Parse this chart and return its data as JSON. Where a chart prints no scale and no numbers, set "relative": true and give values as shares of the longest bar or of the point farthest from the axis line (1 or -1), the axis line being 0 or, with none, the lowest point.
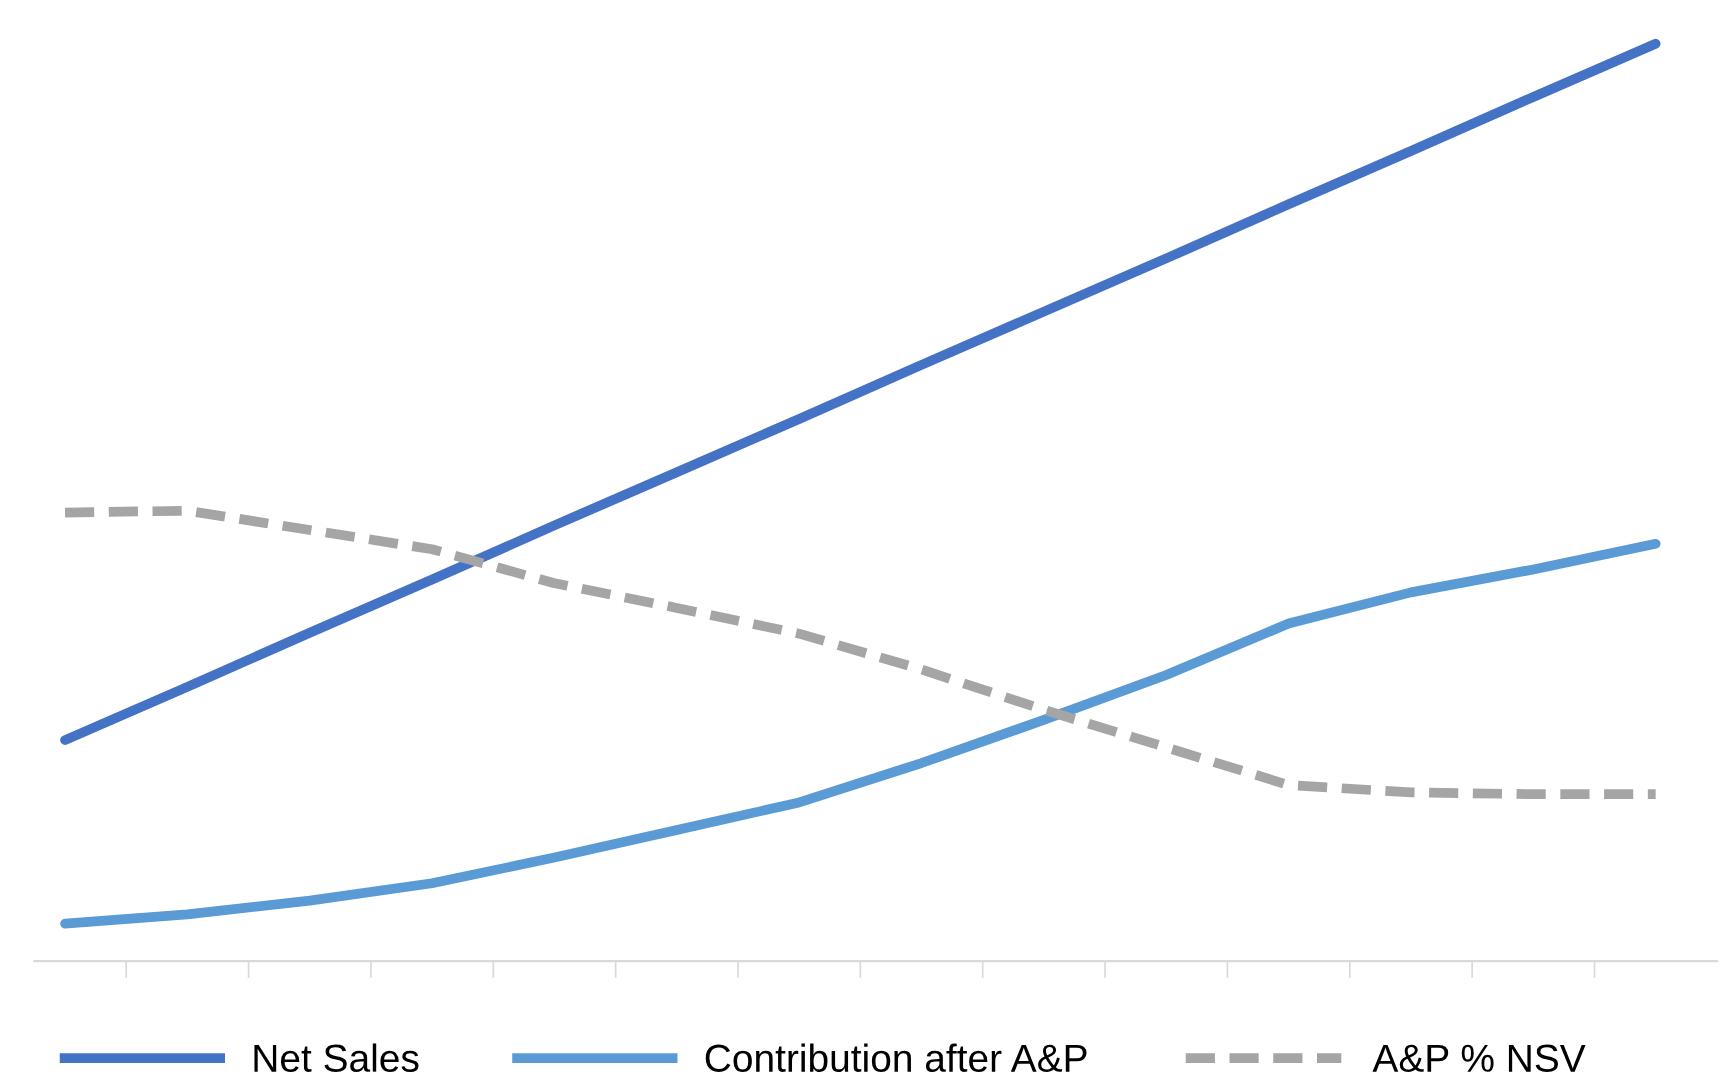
{
  "chart_data": {
    "type": "line",
    "relative": true,
    "legend": "bottom",
    "grid": false,
    "marker": "none",
    "categories": [
      null,
      null,
      null,
      null,
      null,
      null,
      null,
      null,
      null,
      null,
      null,
      null,
      null,
      null
    ],
    "series": [
      {
        "name": "Net Sales",
        "color": "#4472c4",
        "values": [
          0.241,
          0.299,
          0.358,
          0.416,
          0.475,
          0.533,
          0.591,
          0.65,
          0.708,
          0.766,
          0.825,
          0.883,
          0.942,
          1.0
        ]
      },
      {
        "name": "Contribution after A&P",
        "color": "#5b9bd5",
        "values": [
          0.041,
          0.051,
          0.066,
          0.085,
          0.113,
          0.143,
          0.173,
          0.216,
          0.263,
          0.312,
          0.368,
          0.402,
          0.427,
          0.455
        ]
      },
      {
        "name": "A&P % NSV",
        "color": "#a5a5a5",
        "line_style": "dashed",
        "values": [
          0.489,
          0.491,
          0.47,
          0.449,
          0.412,
          0.385,
          0.357,
          0.318,
          0.274,
          0.233,
          0.192,
          0.184,
          0.182,
          0.182
        ]
      }
    ]
  }
}
